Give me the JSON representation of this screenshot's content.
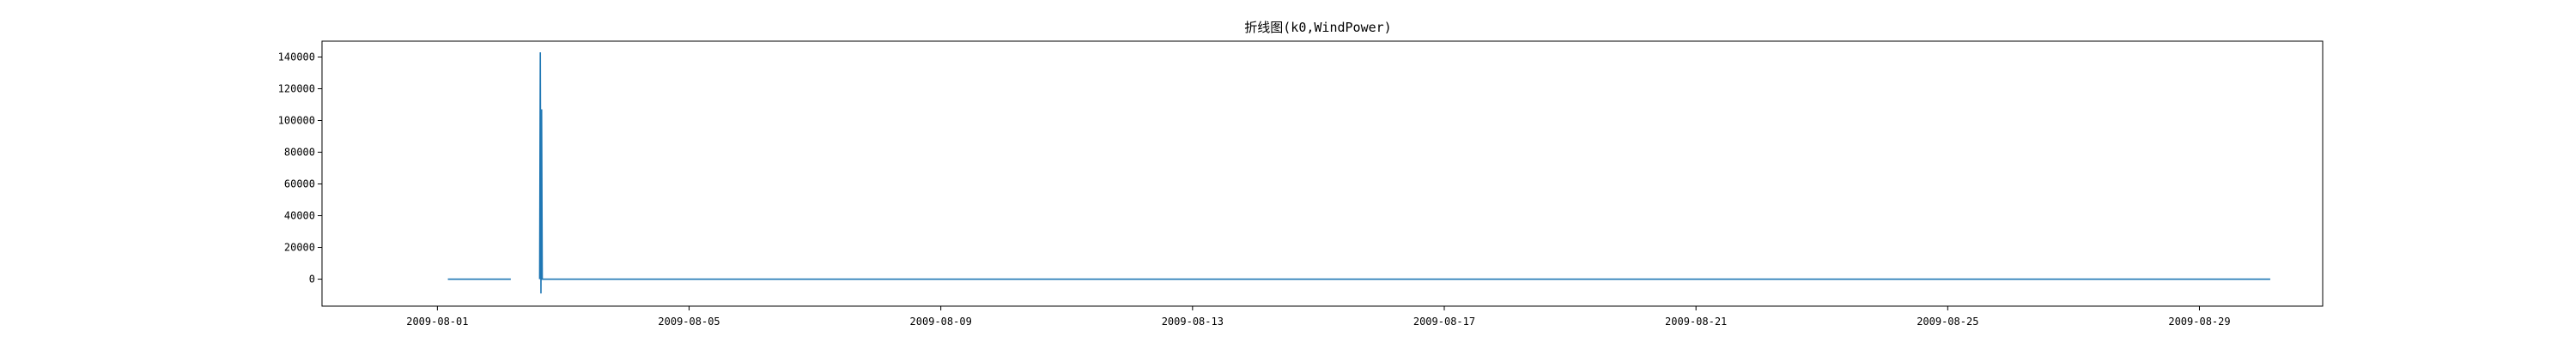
{
  "chart_data": {
    "type": "line",
    "title": "折线图(k0,WindPower)",
    "xlabel": "",
    "ylabel": "",
    "color": "#1f77b4",
    "grid": false,
    "legend": "none",
    "x_ticks": [
      "2009-08-01",
      "2009-08-05",
      "2009-08-09",
      "2009-08-13",
      "2009-08-17",
      "2009-08-21",
      "2009-08-25",
      "2009-08-29"
    ],
    "y_ticks": [
      0,
      20000,
      40000,
      60000,
      80000,
      100000,
      120000,
      140000
    ],
    "xlim": [
      "2009-07-30T04:00",
      "2009-08-30T23:00"
    ],
    "ylim": [
      -17000,
      150000
    ],
    "series": [
      {
        "name": "",
        "points": [
          [
            "2009-08-01T04:00",
            0
          ],
          [
            "2009-08-02T04:00",
            0
          ],
          [
            "2009-08-02T05:00",
            null
          ],
          [
            "2009-08-02T15:00",
            0
          ],
          [
            "2009-08-02T15:15",
            143000
          ],
          [
            "2009-08-02T15:30",
            -9000
          ],
          [
            "2009-08-02T15:45",
            107000
          ],
          [
            "2009-08-02T16:00",
            0
          ],
          [
            "2009-08-10T00:00",
            0
          ],
          [
            "2009-08-20T00:00",
            0
          ],
          [
            "2009-08-30T03:00",
            0
          ]
        ]
      }
    ]
  }
}
